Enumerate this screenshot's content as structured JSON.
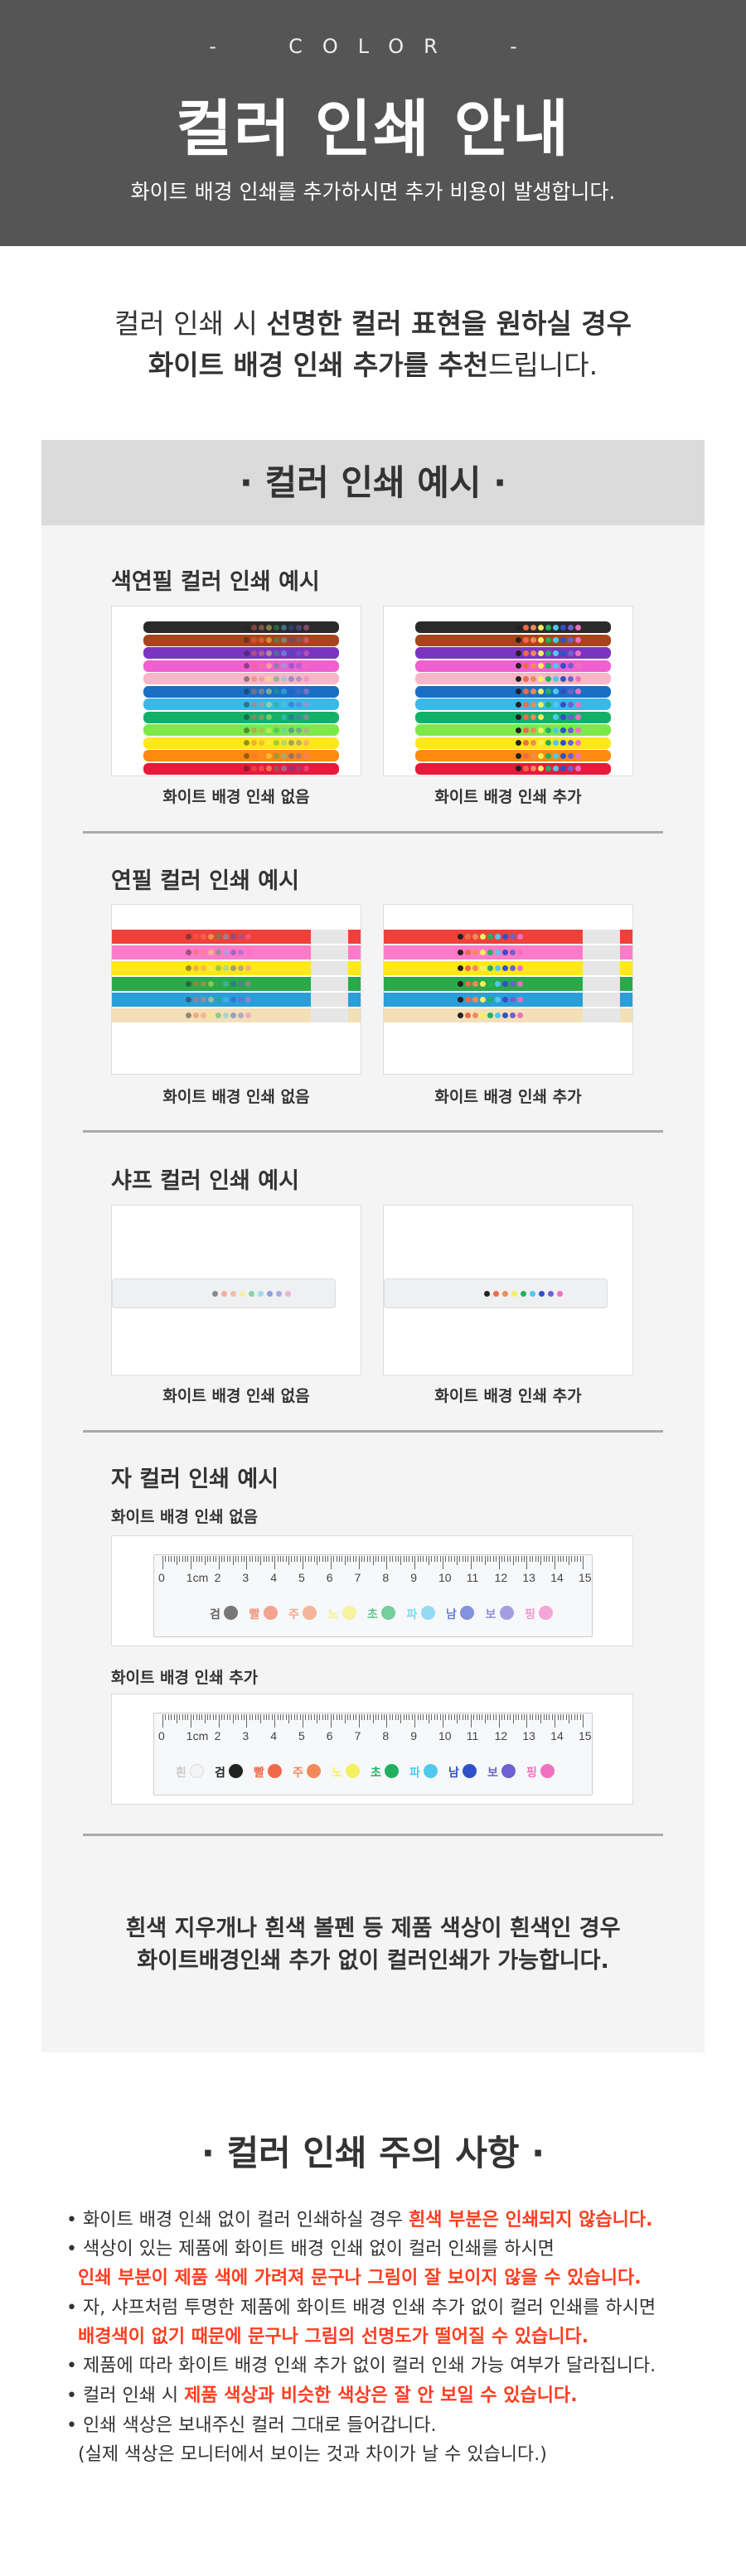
{
  "header": {
    "eyebrow": "-  COLOR  -",
    "title": "컬러 인쇄 안내",
    "subtitle": "화이트 배경 인쇄를 추가하시면 추가 비용이 발생합니다.",
    "bg_color": "#555555"
  },
  "intro": {
    "line1_plain": "컬러 인쇄 시 ",
    "line1_bold": "선명한 컬러 표현을 원하실 경우",
    "line2_bold": "화이트 배경 인쇄 추가를 추천",
    "line2_plain": "드립니다."
  },
  "examples": {
    "heading": "· 컬러 인쇄 예시 ·",
    "sections": [
      {
        "title": "색연필 컬러 인쇄 예시",
        "captions": [
          "화이트 배경 인쇄 없음",
          "화이트 배경 인쇄 추가"
        ],
        "product_colors": [
          "#2a2a2a",
          "#a8441a",
          "#7a35c0",
          "#f060d0",
          "#f7b7c8",
          "#1a6fc4",
          "#3ab8e8",
          "#13b06a",
          "#7ee84a",
          "#ffe81a",
          "#ff8a10",
          "#e8193a"
        ]
      },
      {
        "title": "연필 컬러 인쇄 예시",
        "captions": [
          "화이트 배경 인쇄 없음",
          "화이트 배경 인쇄 추가"
        ],
        "product_colors": [
          "#f0403a",
          "#ff7ac8",
          "#ffe818",
          "#2aa84a",
          "#2a9ed8",
          "#f3dfb8"
        ]
      },
      {
        "title": "샤프 컬러 인쇄 예시",
        "captions": [
          "화이트 배경 인쇄 없음",
          "화이트 배경 인쇄 추가"
        ],
        "product_colors": [
          "#eef0f2"
        ]
      },
      {
        "title": "자 컬러 인쇄 예시",
        "captions": [
          "화이트 배경 인쇄 없음",
          "화이트 배경 인쇄 추가"
        ],
        "ruler": {
          "numbers": [
            "0",
            "1cm",
            "2",
            "3",
            "4",
            "5",
            "6",
            "7",
            "8",
            "9",
            "10",
            "11",
            "12",
            "13",
            "14",
            "15"
          ],
          "color_labels": [
            "흰",
            "검",
            "빨",
            "주",
            "노",
            "초",
            "파",
            "남",
            "보",
            "핑"
          ],
          "color_dots": [
            "#f4f4f4",
            "#222222",
            "#f06a4a",
            "#f08a5a",
            "#f4f060",
            "#20b060",
            "#50c8f0",
            "#3050c8",
            "#7060d0",
            "#f070c0"
          ]
        }
      }
    ],
    "note_line1": "흰색 지우개나 흰색 볼펜 등 제품 색상이 흰색인 경우",
    "note_line2": "화이트배경인쇄 추가 없이 컬러인쇄가 가능합니다."
  },
  "caution": {
    "heading": "· 컬러 인쇄 주의 사항 ·",
    "highlight_color": "#ff3d1f",
    "items": [
      {
        "plain": "화이트 배경 인쇄 없이 컬러 인쇄하실 경우 ",
        "red": "흰색 부분은 인쇄되지 않습니다."
      },
      {
        "plain": "색상이 있는 제품에 화이트 배경 인쇄 없이 컬러 인쇄를 하시면",
        "red": "인쇄 부분이 제품 색에 가려져 문구나 그림이 잘 보이지 않을 수 있습니다."
      },
      {
        "plain": "자, 샤프처럼 투명한 제품에 화이트 배경 인쇄 추가 없이 컬러 인쇄를 하시면",
        "red": "배경색이 없기 때문에 문구나 그림의 선명도가 떨어질 수 있습니다."
      },
      {
        "plain": "제품에 따라 화이트 배경 인쇄 추가 없이 컬러 인쇄 가능 여부가 달라집니다."
      },
      {
        "plain": "컬러 인쇄 시 ",
        "red": "제품 색상과 비슷한 색상은 잘 안 보일 수 있습니다."
      },
      {
        "plain": "인쇄 색상은 보내주신 컬러 그대로 들어갑니다.",
        "plain2": "(실제 색상은 모니터에서 보이는 것과 차이가 날 수 있습니다.)"
      }
    ]
  }
}
